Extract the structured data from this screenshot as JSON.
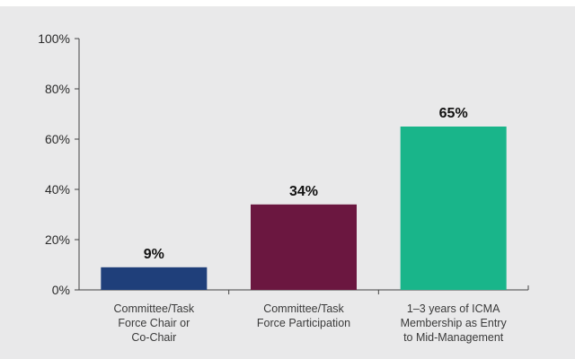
{
  "chart_data": {
    "type": "bar",
    "title": "",
    "xlabel": "",
    "ylabel": "",
    "ylim": [
      0,
      100
    ],
    "yticks": [
      "0%",
      "20%",
      "40%",
      "60%",
      "80%",
      "100%"
    ],
    "grid": false,
    "categories": [
      [
        "Committee/Task",
        "Force Chair or",
        "Co-Chair"
      ],
      [
        "Committee/Task",
        "Force Participation"
      ],
      [
        "1–3 years of ICMA",
        "Membership as Entry",
        "to Mid-Management"
      ]
    ],
    "values": [
      9,
      34,
      65
    ],
    "data_labels": [
      "9%",
      "34%",
      "65%"
    ],
    "colors": [
      "#1f3f7a",
      "#6b1740",
      "#19b58a"
    ]
  }
}
